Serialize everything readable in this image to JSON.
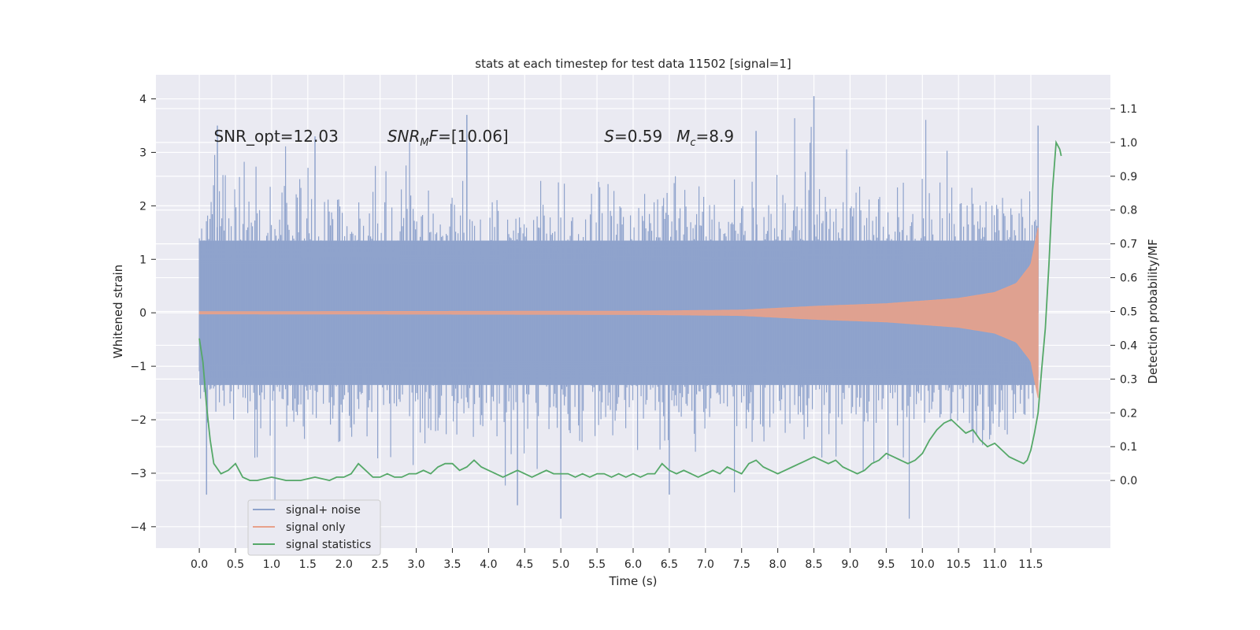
{
  "chart_data": {
    "type": "line",
    "title": "stats at each timestep for test data 11502 [signal=1]",
    "xlabel": "Time (s)",
    "ylabel": "Whitened strain",
    "ylabel_right": "Detection probability/MF",
    "xlim": [
      -0.6,
      12.6
    ],
    "ylim": [
      -4.4,
      4.45
    ],
    "ylim_right": [
      -0.2,
      1.2
    ],
    "x_ticks": [
      "0.0",
      "0.5",
      "1.0",
      "1.5",
      "2.0",
      "2.5",
      "3.0",
      "3.5",
      "4.0",
      "4.5",
      "5.0",
      "5.5",
      "6.0",
      "6.5",
      "7.0",
      "7.5",
      "8.0",
      "8.5",
      "9.0",
      "9.5",
      "10.0",
      "10.5",
      "11.0",
      "11.5"
    ],
    "y_ticks": [
      "−4",
      "−3",
      "−2",
      "−1",
      "0",
      "1",
      "2",
      "3",
      "4"
    ],
    "y_ticks_right": [
      "0.0",
      "0.1",
      "0.2",
      "0.3",
      "0.4",
      "0.5",
      "0.6",
      "0.7",
      "0.8",
      "0.9",
      "1.0",
      "1.1"
    ],
    "grid": true,
    "legend_placement": "lower-left",
    "annotations": {
      "snr_opt": "SNR_opt=12.03",
      "snr_mf_value": "=[10.06]",
      "s_value": "=0.59",
      "mc_value": "=8.9"
    },
    "series": [
      {
        "name": "signal+ noise",
        "color": "#8fa3cc",
        "kind": "noise",
        "x_range": [
          0.0,
          11.6
        ],
        "typical_amplitude": 1.35,
        "peak_max": 4.05,
        "peak_min": -3.85
      },
      {
        "name": "signal only",
        "color": "#e8a18a",
        "kind": "chirp",
        "x_range": [
          0.0,
          11.6
        ],
        "envelope": [
          [
            0.0,
            0.02
          ],
          [
            6.0,
            0.03
          ],
          [
            7.5,
            0.05
          ],
          [
            8.5,
            0.12
          ],
          [
            9.5,
            0.17
          ],
          [
            10.5,
            0.27
          ],
          [
            11.0,
            0.38
          ],
          [
            11.3,
            0.55
          ],
          [
            11.5,
            0.9
          ],
          [
            11.63,
            1.8
          ],
          [
            11.66,
            0.3
          ]
        ]
      },
      {
        "name": "signal statistics",
        "color": "#55a868",
        "kind": "line",
        "axis": "right",
        "points": [
          [
            0.0,
            0.42
          ],
          [
            0.05,
            0.35
          ],
          [
            0.1,
            0.22
          ],
          [
            0.15,
            0.12
          ],
          [
            0.2,
            0.05
          ],
          [
            0.3,
            0.02
          ],
          [
            0.4,
            0.03
          ],
          [
            0.5,
            0.05
          ],
          [
            0.55,
            0.03
          ],
          [
            0.6,
            0.01
          ],
          [
            0.7,
            0.0
          ],
          [
            0.8,
            0.0
          ],
          [
            0.9,
            0.005
          ],
          [
            1.0,
            0.01
          ],
          [
            1.1,
            0.005
          ],
          [
            1.2,
            0.0
          ],
          [
            1.3,
            0.0
          ],
          [
            1.4,
            0.0
          ],
          [
            1.5,
            0.005
          ],
          [
            1.6,
            0.01
          ],
          [
            1.7,
            0.005
          ],
          [
            1.8,
            0.0
          ],
          [
            1.9,
            0.01
          ],
          [
            2.0,
            0.01
          ],
          [
            2.1,
            0.02
          ],
          [
            2.2,
            0.05
          ],
          [
            2.3,
            0.03
          ],
          [
            2.4,
            0.01
          ],
          [
            2.5,
            0.01
          ],
          [
            2.6,
            0.02
          ],
          [
            2.7,
            0.01
          ],
          [
            2.8,
            0.01
          ],
          [
            2.9,
            0.02
          ],
          [
            3.0,
            0.02
          ],
          [
            3.1,
            0.03
          ],
          [
            3.2,
            0.02
          ],
          [
            3.3,
            0.04
          ],
          [
            3.4,
            0.05
          ],
          [
            3.5,
            0.05
          ],
          [
            3.6,
            0.03
          ],
          [
            3.7,
            0.04
          ],
          [
            3.8,
            0.06
          ],
          [
            3.9,
            0.04
          ],
          [
            4.0,
            0.03
          ],
          [
            4.1,
            0.02
          ],
          [
            4.2,
            0.01
          ],
          [
            4.3,
            0.02
          ],
          [
            4.4,
            0.03
          ],
          [
            4.5,
            0.02
          ],
          [
            4.6,
            0.01
          ],
          [
            4.7,
            0.02
          ],
          [
            4.8,
            0.03
          ],
          [
            4.9,
            0.02
          ],
          [
            5.0,
            0.02
          ],
          [
            5.1,
            0.02
          ],
          [
            5.2,
            0.01
          ],
          [
            5.3,
            0.02
          ],
          [
            5.4,
            0.01
          ],
          [
            5.5,
            0.02
          ],
          [
            5.6,
            0.02
          ],
          [
            5.7,
            0.01
          ],
          [
            5.8,
            0.02
          ],
          [
            5.9,
            0.01
          ],
          [
            6.0,
            0.02
          ],
          [
            6.1,
            0.01
          ],
          [
            6.2,
            0.02
          ],
          [
            6.3,
            0.02
          ],
          [
            6.4,
            0.05
          ],
          [
            6.5,
            0.03
          ],
          [
            6.6,
            0.02
          ],
          [
            6.7,
            0.03
          ],
          [
            6.8,
            0.02
          ],
          [
            6.9,
            0.01
          ],
          [
            7.0,
            0.02
          ],
          [
            7.1,
            0.03
          ],
          [
            7.2,
            0.02
          ],
          [
            7.3,
            0.04
          ],
          [
            7.4,
            0.03
          ],
          [
            7.5,
            0.02
          ],
          [
            7.6,
            0.05
          ],
          [
            7.7,
            0.06
          ],
          [
            7.8,
            0.04
          ],
          [
            7.9,
            0.03
          ],
          [
            8.0,
            0.02
          ],
          [
            8.1,
            0.03
          ],
          [
            8.2,
            0.04
          ],
          [
            8.3,
            0.05
          ],
          [
            8.4,
            0.06
          ],
          [
            8.5,
            0.07
          ],
          [
            8.6,
            0.06
          ],
          [
            8.7,
            0.05
          ],
          [
            8.8,
            0.06
          ],
          [
            8.9,
            0.04
          ],
          [
            9.0,
            0.03
          ],
          [
            9.1,
            0.02
          ],
          [
            9.2,
            0.03
          ],
          [
            9.3,
            0.05
          ],
          [
            9.4,
            0.06
          ],
          [
            9.5,
            0.08
          ],
          [
            9.6,
            0.07
          ],
          [
            9.7,
            0.06
          ],
          [
            9.8,
            0.05
          ],
          [
            9.9,
            0.06
          ],
          [
            10.0,
            0.08
          ],
          [
            10.1,
            0.12
          ],
          [
            10.2,
            0.15
          ],
          [
            10.3,
            0.17
          ],
          [
            10.4,
            0.18
          ],
          [
            10.5,
            0.16
          ],
          [
            10.6,
            0.14
          ],
          [
            10.7,
            0.15
          ],
          [
            10.8,
            0.12
          ],
          [
            10.9,
            0.1
          ],
          [
            11.0,
            0.11
          ],
          [
            11.1,
            0.09
          ],
          [
            11.2,
            0.07
          ],
          [
            11.3,
            0.06
          ],
          [
            11.4,
            0.05
          ],
          [
            11.45,
            0.06
          ],
          [
            11.5,
            0.09
          ],
          [
            11.55,
            0.14
          ],
          [
            11.6,
            0.2
          ],
          [
            11.62,
            0.25
          ],
          [
            11.65,
            0.33
          ],
          [
            11.7,
            0.45
          ],
          [
            11.75,
            0.64
          ],
          [
            11.8,
            0.86
          ],
          [
            11.85,
            1.0
          ],
          [
            11.9,
            0.98
          ],
          [
            11.92,
            0.96
          ]
        ]
      }
    ]
  }
}
